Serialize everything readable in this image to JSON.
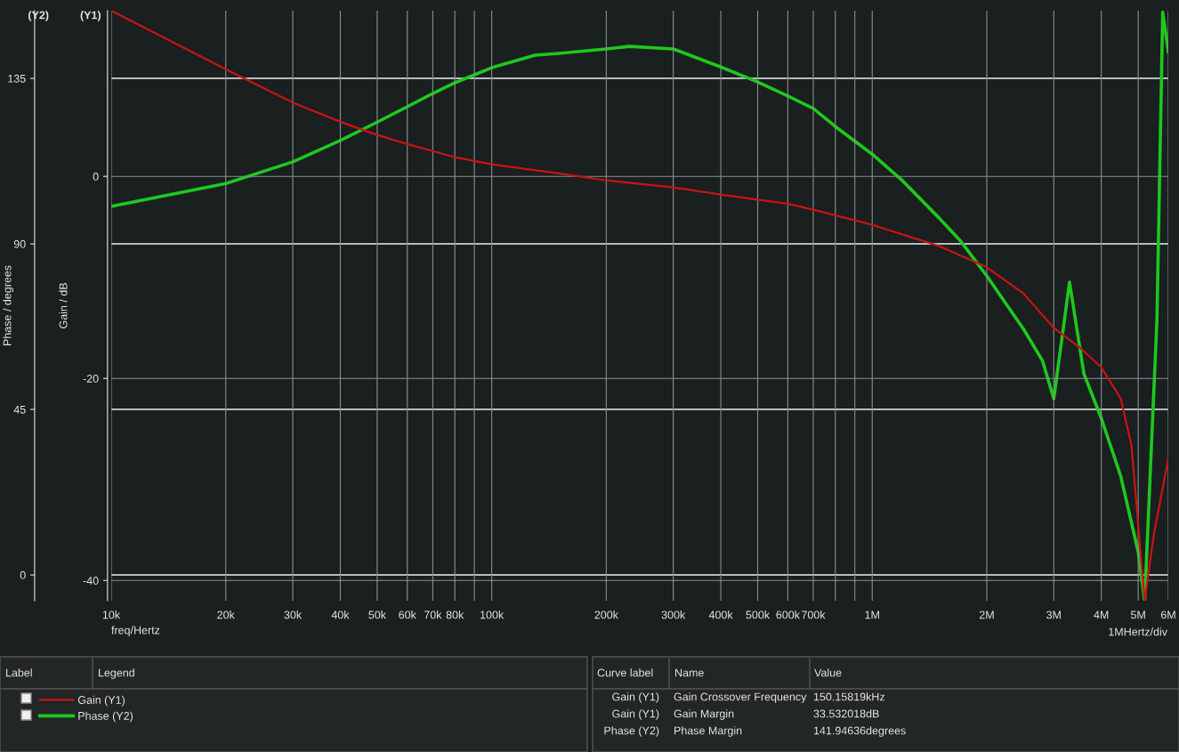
{
  "chart_data": {
    "type": "line",
    "xlabel": "freq/Hertz",
    "ylabel": "Gain / dB",
    "y2label": "Phase / degrees",
    "log": "x",
    "xlim": [
      10000,
      6000000
    ],
    "xticks": [
      {
        "value": 10000,
        "label": "10k"
      },
      {
        "value": 20000,
        "label": "20k"
      },
      {
        "value": 30000,
        "label": "30k"
      },
      {
        "value": 40000,
        "label": "40k"
      },
      {
        "value": 50000,
        "label": "50k"
      },
      {
        "value": 60000,
        "label": "60k"
      },
      {
        "value": 70000,
        "label": "70k"
      },
      {
        "value": 80000,
        "label": "80k"
      },
      {
        "value": 90000,
        "label": null
      },
      {
        "value": 100000,
        "label": "100k"
      },
      {
        "value": 200000,
        "label": "200k"
      },
      {
        "value": 300000,
        "label": "300k"
      },
      {
        "value": 400000,
        "label": "400k"
      },
      {
        "value": 500000,
        "label": "500k"
      },
      {
        "value": 600000,
        "label": "600k"
      },
      {
        "value": 700000,
        "label": "700k"
      },
      {
        "value": 800000,
        "label": null
      },
      {
        "value": 900000,
        "label": null
      },
      {
        "value": 1000000,
        "label": "1M"
      },
      {
        "value": 2000000,
        "label": "2M"
      },
      {
        "value": 3000000,
        "label": "3M"
      },
      {
        "value": 4000000,
        "label": "4M"
      },
      {
        "value": 5000000,
        "label": "5M"
      },
      {
        "value": 6000000,
        "label": "6M"
      }
    ],
    "ylim": [
      -42,
      16.4
    ],
    "yticks": [
      -40,
      -20,
      0
    ],
    "y2lim": [
      -7,
      153.4
    ],
    "y2ticks": [
      0,
      45,
      90,
      135
    ],
    "grid": true,
    "legend": "bottom",
    "series": [
      {
        "name": "Gain (Y1)",
        "color": "#c81414",
        "x": [
          10000,
          20000,
          30000,
          40000,
          50000,
          60000,
          70000,
          80000,
          100000,
          150000,
          200000,
          300000,
          400000,
          500000,
          600000,
          700000,
          1000000,
          1500000,
          2000000,
          2500000,
          3000000,
          3500000,
          4000000,
          4500000,
          4800000,
          5000000,
          5200000,
          5500000,
          6000000
        ],
        "values": [
          16.4,
          10.6,
          7.3,
          5.4,
          4.1,
          3.2,
          2.5,
          1.9,
          1.2,
          0.3,
          -0.4,
          -1.1,
          -1.8,
          -2.3,
          -2.7,
          -3.3,
          -4.8,
          -6.9,
          -9.0,
          -11.6,
          -15.0,
          -16.9,
          -18.9,
          -22.0,
          -26.6,
          -34.5,
          -42,
          -35.4,
          -27.9
        ]
      },
      {
        "name": "Phase (Y2)",
        "color": "#1ec81e",
        "axis": "y2",
        "x": [
          10000,
          20000,
          30000,
          40000,
          50000,
          60000,
          70000,
          80000,
          100000,
          130000,
          150000,
          200000,
          230000,
          300000,
          400000,
          500000,
          600000,
          700000,
          800000,
          1000000,
          1200000,
          1500000,
          1700000,
          2000000,
          2500000,
          2800000,
          3000000,
          3300000,
          3600000,
          4000000,
          4500000,
          5000000,
          5200000,
          5600000,
          5800000,
          6000000
        ],
        "values": [
          100.2,
          106.4,
          112.3,
          118.1,
          123.1,
          127.3,
          130.9,
          133.8,
          137.9,
          141.3,
          141.8,
          143.0,
          143.7,
          143.0,
          138.1,
          134.0,
          130.2,
          126.8,
          121.9,
          114.4,
          107.2,
          97.0,
          91.0,
          81.3,
          66.8,
          58.3,
          47.9,
          79.6,
          54.7,
          42.6,
          26.8,
          6.3,
          -7,
          69.2,
          153,
          142.3
        ]
      }
    ],
    "annotations": [
      "(Y2)",
      "(Y1)",
      "1MHertz/div",
      "Label",
      "Legend",
      "Curve label",
      "Name",
      "Value",
      "Gain (Y1)",
      "Gain Crossover Frequency",
      "150.15819kHz",
      "Gain (Y1)",
      "Gain Margin",
      "33.532018dB",
      "Phase (Y2)",
      "Phase Margin",
      "141.94636degrees"
    ]
  }
}
